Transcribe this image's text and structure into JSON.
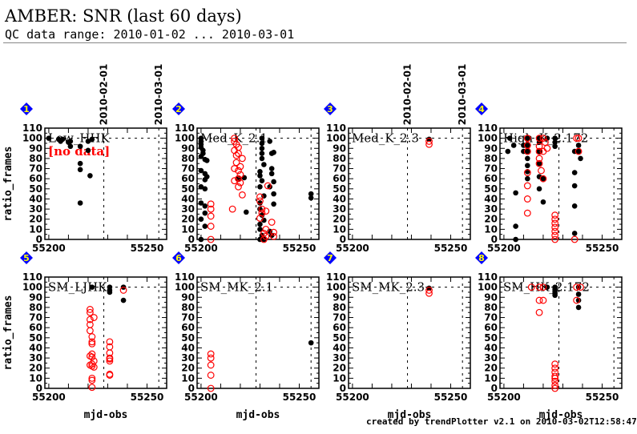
{
  "header": {
    "title": "AMBER: SNR (last 60 days)",
    "subtitle": "QC data range: 2010-01-02 ... 2010-03-01"
  },
  "footer": "created by trendPlotter v2.1 on 2010-03-02T12:58:47",
  "colors": {
    "marker_black": "#000000",
    "marker_red": "#ff0000",
    "badge_blue": "#0000ff",
    "badge_yellow": "#ffff00",
    "no_data": "#ff0000"
  },
  "chart_data": {
    "type": "scatter",
    "layout": "2x4 grid",
    "xlabel": "mjd-obs",
    "ylabel": "ratio_frames",
    "xlim": [
      55198,
      55260
    ],
    "ylim": [
      0,
      110
    ],
    "xticks": [
      55200,
      55250
    ],
    "yticks": [
      0,
      10,
      20,
      30,
      40,
      50,
      60,
      70,
      80,
      90,
      100,
      110
    ],
    "reference_line_y": 100,
    "date_markers": [
      {
        "label": "2010-02-01",
        "mjd": 55228
      },
      {
        "label": "2010-03-01",
        "mjd": 55256
      }
    ],
    "panels": [
      {
        "id": "1",
        "label": "Low_HHK",
        "note": "[no data]",
        "black": [
          [
            55200,
            100
          ],
          [
            55205,
            99
          ],
          [
            55206,
            97
          ],
          [
            55207,
            99
          ],
          [
            55210,
            96
          ],
          [
            55211,
            92
          ],
          [
            55211,
            97
          ],
          [
            55216,
            92
          ],
          [
            55216,
            75
          ],
          [
            55216,
            69
          ],
          [
            55216,
            36
          ],
          [
            55220,
            97
          ],
          [
            55220,
            88
          ],
          [
            55221,
            63
          ],
          [
            55222,
            99
          ]
        ],
        "red": []
      },
      {
        "id": "2",
        "label": "Med_K_2.1",
        "black": [
          [
            55200,
            100
          ],
          [
            55200,
            97
          ],
          [
            55200,
            94
          ],
          [
            55200,
            91
          ],
          [
            55201,
            88
          ],
          [
            55201,
            85
          ],
          [
            55200,
            82
          ],
          [
            55202,
            79
          ],
          [
            55203,
            78
          ],
          [
            55200,
            68
          ],
          [
            55202,
            65
          ],
          [
            55203,
            62
          ],
          [
            55202,
            59
          ],
          [
            55200,
            52
          ],
          [
            55202,
            50
          ],
          [
            55200,
            36
          ],
          [
            55202,
            33
          ],
          [
            55202,
            26
          ],
          [
            55200,
            20
          ],
          [
            55202,
            13
          ],
          [
            55200,
            0
          ],
          [
            55219,
            60
          ],
          [
            55222,
            61
          ],
          [
            55223,
            27
          ],
          [
            55231,
            100
          ],
          [
            55231,
            95
          ],
          [
            55231,
            90
          ],
          [
            55231,
            85
          ],
          [
            55231,
            80
          ],
          [
            55232,
            74
          ],
          [
            55235,
            97
          ],
          [
            55236,
            85
          ],
          [
            55236,
            70
          ],
          [
            55237,
            86
          ],
          [
            55230,
            67
          ],
          [
            55230,
            63
          ],
          [
            55231,
            58
          ],
          [
            55230,
            52
          ],
          [
            55236,
            65
          ],
          [
            55237,
            57
          ],
          [
            55235,
            52
          ],
          [
            55232,
            43
          ],
          [
            55237,
            45
          ],
          [
            55237,
            35
          ],
          [
            55230,
            36
          ],
          [
            55230,
            30
          ],
          [
            55231,
            24
          ],
          [
            55232,
            19
          ],
          [
            55230,
            15
          ],
          [
            55230,
            10
          ],
          [
            55231,
            4
          ],
          [
            55230,
            0
          ],
          [
            55232,
            0
          ],
          [
            55235,
            8
          ],
          [
            55236,
            4
          ],
          [
            55256,
            45
          ],
          [
            55256,
            41
          ]
        ],
        "red": [
          [
            55205,
            35
          ],
          [
            55205,
            30
          ],
          [
            55205,
            23
          ],
          [
            55205,
            13
          ],
          [
            55205,
            0
          ],
          [
            55217,
            100
          ],
          [
            55217,
            97
          ],
          [
            55218,
            94
          ],
          [
            55219,
            91
          ],
          [
            55217,
            88
          ],
          [
            55219,
            85
          ],
          [
            55218,
            83
          ],
          [
            55221,
            80
          ],
          [
            55218,
            76
          ],
          [
            55220,
            72
          ],
          [
            55217,
            70
          ],
          [
            55219,
            68
          ],
          [
            55220,
            64
          ],
          [
            55219,
            60
          ],
          [
            55217,
            58
          ],
          [
            55220,
            56
          ],
          [
            55219,
            52
          ],
          [
            55221,
            44
          ],
          [
            55216,
            30
          ],
          [
            55230,
            42
          ],
          [
            55230,
            38
          ],
          [
            55231,
            30
          ],
          [
            55231,
            26
          ],
          [
            55230,
            21
          ],
          [
            55233,
            28
          ],
          [
            55234,
            53
          ],
          [
            55236,
            17
          ],
          [
            55233,
            10
          ],
          [
            55232,
            6
          ],
          [
            55233,
            3
          ],
          [
            55237,
            7
          ],
          [
            55237,
            3
          ],
          [
            55232,
            0
          ]
        ]
      },
      {
        "id": "3",
        "label": "Med_K_2.3",
        "black": [
          [
            55239,
            99
          ]
        ],
        "red": [
          [
            55239,
            97
          ],
          [
            55239,
            94
          ]
        ]
      },
      {
        "id": "4",
        "label": "High_K_2.172",
        "black": [
          [
            55203,
            100
          ],
          [
            55205,
            93
          ],
          [
            55202,
            87
          ],
          [
            55206,
            46
          ],
          [
            55206,
            13
          ],
          [
            55206,
            0
          ],
          [
            55210,
            93
          ],
          [
            55210,
            87
          ],
          [
            55212,
            100
          ],
          [
            55212,
            93
          ],
          [
            55212,
            87
          ],
          [
            55212,
            80
          ],
          [
            55212,
            73
          ],
          [
            55212,
            67
          ],
          [
            55212,
            60
          ],
          [
            55218,
            100
          ],
          [
            55218,
            96
          ],
          [
            55218,
            87
          ],
          [
            55218,
            75
          ],
          [
            55218,
            62
          ],
          [
            55218,
            50
          ],
          [
            55220,
            60
          ],
          [
            55220,
            37
          ],
          [
            55222,
            100
          ],
          [
            55226,
            100
          ],
          [
            55226,
            96
          ],
          [
            55226,
            92
          ],
          [
            55236,
            87
          ],
          [
            55236,
            66
          ],
          [
            55236,
            53
          ],
          [
            55236,
            33
          ],
          [
            55236,
            6
          ],
          [
            55238,
            93
          ],
          [
            55238,
            87
          ],
          [
            55239,
            80
          ]
        ],
        "red": [
          [
            55212,
            100
          ],
          [
            55212,
            93
          ],
          [
            55212,
            87
          ],
          [
            55212,
            66
          ],
          [
            55212,
            53
          ],
          [
            55212,
            40
          ],
          [
            55212,
            26
          ],
          [
            55218,
            100
          ],
          [
            55218,
            92
          ],
          [
            55218,
            87
          ],
          [
            55218,
            80
          ],
          [
            55218,
            75
          ],
          [
            55219,
            68
          ],
          [
            55220,
            60
          ],
          [
            55220,
            100
          ],
          [
            55221,
            96
          ],
          [
            55222,
            90
          ],
          [
            55220,
            87
          ],
          [
            55226,
            24
          ],
          [
            55226,
            20
          ],
          [
            55226,
            16
          ],
          [
            55226,
            12
          ],
          [
            55226,
            8
          ],
          [
            55226,
            4
          ],
          [
            55226,
            0
          ],
          [
            55237,
            100
          ],
          [
            55238,
            100
          ],
          [
            55238,
            87
          ],
          [
            55236,
            0
          ]
        ]
      },
      {
        "id": "5",
        "label": "SM_LJHK",
        "black": [
          [
            55222,
            100
          ],
          [
            55231,
            100
          ],
          [
            55231,
            97
          ],
          [
            55231,
            95
          ],
          [
            55238,
            100
          ],
          [
            55238,
            87
          ]
        ],
        "red": [
          [
            55221,
            78
          ],
          [
            55221,
            75
          ],
          [
            55221,
            68
          ],
          [
            55223,
            70
          ],
          [
            55221,
            63
          ],
          [
            55221,
            57
          ],
          [
            55222,
            51
          ],
          [
            55222,
            46
          ],
          [
            55222,
            44
          ],
          [
            55222,
            34
          ],
          [
            55221,
            32
          ],
          [
            55222,
            31
          ],
          [
            55223,
            27
          ],
          [
            55222,
            24
          ],
          [
            55221,
            23
          ],
          [
            55222,
            22
          ],
          [
            55223,
            21
          ],
          [
            55222,
            10
          ],
          [
            55222,
            8
          ],
          [
            55222,
            1
          ],
          [
            55231,
            46
          ],
          [
            55231,
            41
          ],
          [
            55231,
            35
          ],
          [
            55231,
            30
          ],
          [
            55231,
            27
          ],
          [
            55231,
            29
          ],
          [
            55231,
            14
          ],
          [
            55231,
            13
          ],
          [
            55238,
            97
          ]
        ]
      },
      {
        "id": "6",
        "label": "SM_MK_2.1",
        "black": [
          [
            55256,
            45
          ]
        ],
        "red": [
          [
            55205,
            34
          ],
          [
            55205,
            30
          ],
          [
            55205,
            23
          ],
          [
            55205,
            13
          ],
          [
            55205,
            0
          ]
        ]
      },
      {
        "id": "7",
        "label": "SM_MK_2.3",
        "black": [
          [
            55239,
            99
          ]
        ],
        "red": [
          [
            55239,
            97
          ],
          [
            55239,
            94
          ]
        ]
      },
      {
        "id": "8",
        "label": "SM_HK_2.172",
        "black": [
          [
            55222,
            100
          ],
          [
            55226,
            100
          ],
          [
            55226,
            98
          ],
          [
            55226,
            96
          ],
          [
            55226,
            94
          ],
          [
            55226,
            92
          ],
          [
            55238,
            100
          ],
          [
            55238,
            93
          ],
          [
            55238,
            87
          ],
          [
            55238,
            80
          ]
        ],
        "red": [
          [
            55214,
            100
          ],
          [
            55218,
            100
          ],
          [
            55220,
            100
          ],
          [
            55218,
            87
          ],
          [
            55220,
            87
          ],
          [
            55218,
            75
          ],
          [
            55237,
            100
          ],
          [
            55239,
            100
          ],
          [
            55237,
            87
          ],
          [
            55226,
            24
          ],
          [
            55226,
            20
          ],
          [
            55226,
            16
          ],
          [
            55226,
            12
          ],
          [
            55226,
            10
          ],
          [
            55226,
            7
          ],
          [
            55226,
            3
          ],
          [
            55226,
            0
          ]
        ]
      }
    ]
  }
}
